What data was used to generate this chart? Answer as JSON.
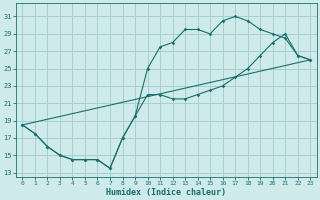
{
  "xlabel": "Humidex (Indice chaleur)",
  "xlim": [
    -0.5,
    23.5
  ],
  "ylim": [
    12.5,
    32.5
  ],
  "yticks": [
    13,
    15,
    17,
    19,
    21,
    23,
    25,
    27,
    29,
    31
  ],
  "xticks": [
    0,
    1,
    2,
    3,
    4,
    5,
    6,
    7,
    8,
    9,
    10,
    11,
    12,
    13,
    14,
    15,
    16,
    17,
    18,
    19,
    20,
    21,
    22,
    23
  ],
  "bg_color": "#ceeaea",
  "grid_color": "#a8cece",
  "line_color": "#1a6e6e",
  "line1_x": [
    0,
    1,
    2,
    3,
    4,
    5,
    6,
    7,
    8,
    9,
    10,
    11,
    12,
    13,
    14,
    15,
    16,
    17,
    18,
    19,
    20,
    21,
    22,
    23
  ],
  "line1_y": [
    18.5,
    17.5,
    16.0,
    15.0,
    14.5,
    14.5,
    14.5,
    13.5,
    17.0,
    19.5,
    25.0,
    27.5,
    28.0,
    29.5,
    29.5,
    29.0,
    30.5,
    31.0,
    30.5,
    29.5,
    29.0,
    28.5,
    26.5,
    26.0
  ],
  "line2_x": [
    0,
    1,
    2,
    3,
    4,
    5,
    6,
    7,
    8,
    9,
    10,
    11,
    12,
    13,
    14,
    15,
    16,
    17,
    18,
    19,
    20,
    21,
    22,
    23
  ],
  "line2_y": [
    18.5,
    17.5,
    16.0,
    15.0,
    14.5,
    14.5,
    14.5,
    13.5,
    17.0,
    19.5,
    22.0,
    22.0,
    21.5,
    21.5,
    22.0,
    22.5,
    23.0,
    24.0,
    25.0,
    26.5,
    28.0,
    29.0,
    26.5,
    26.0
  ],
  "line3_x": [
    0,
    23
  ],
  "line3_y": [
    18.5,
    26.0
  ]
}
